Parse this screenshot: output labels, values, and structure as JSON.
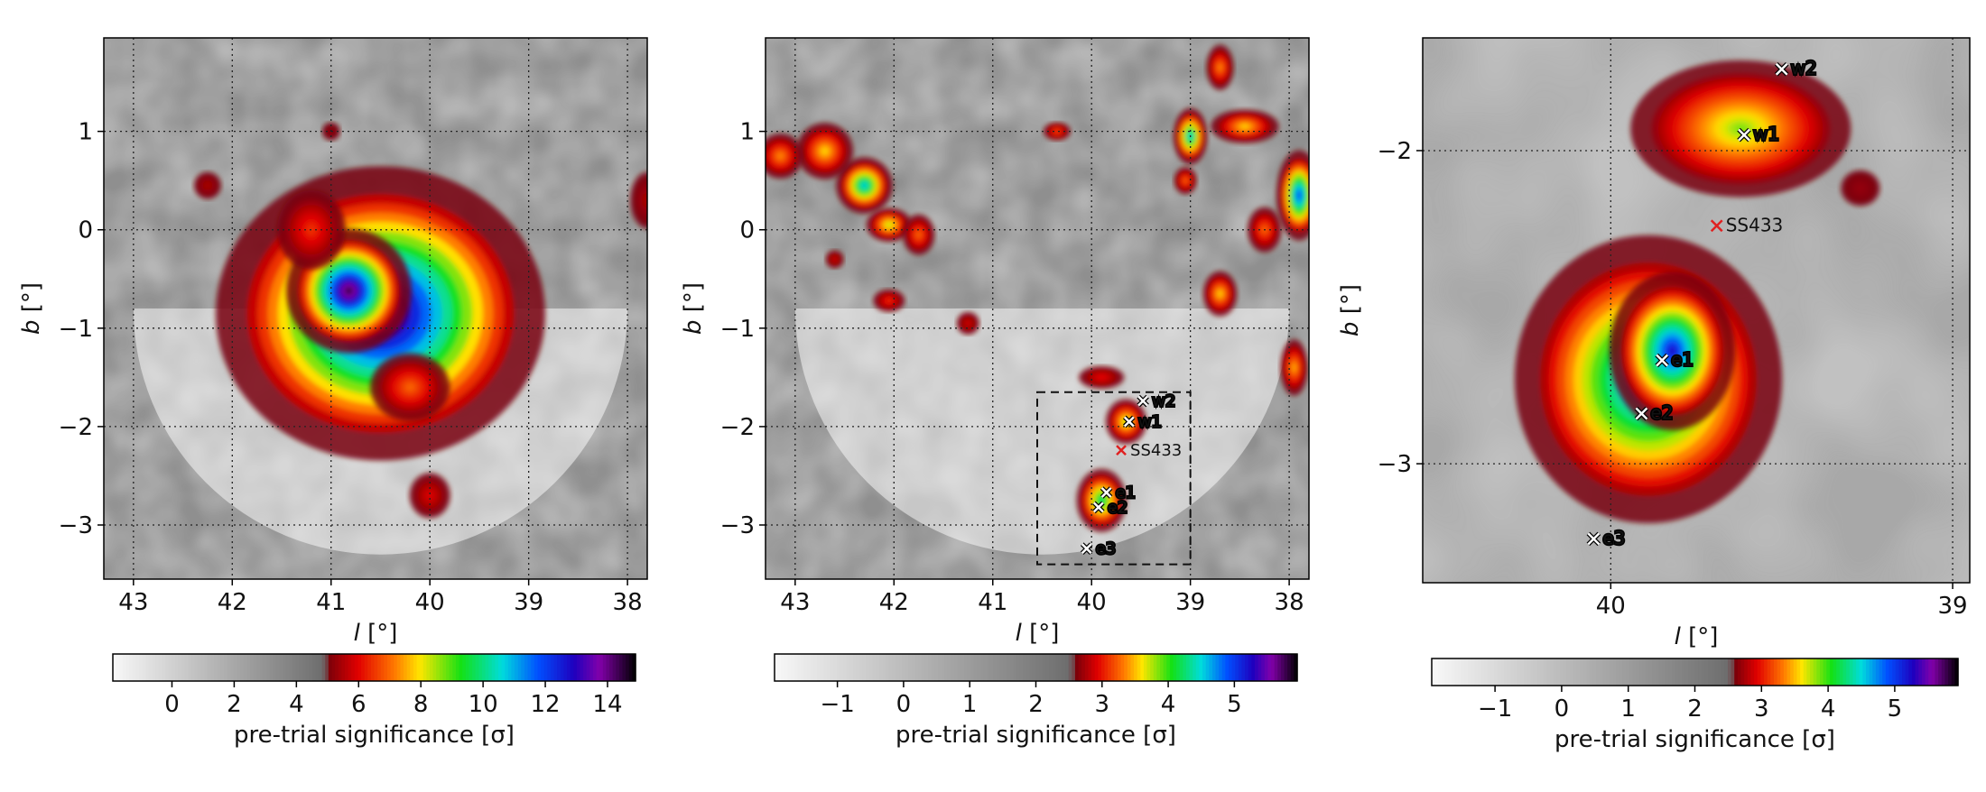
{
  "chart_data": [
    {
      "type": "heatmap",
      "panel": "left",
      "x_axis": {
        "label_var": "l",
        "label_unit": "[°]",
        "range": [
          43.3,
          37.8
        ],
        "reversed": true,
        "ticks": [
          43,
          42,
          41,
          40,
          39,
          38
        ],
        "tick_labels": [
          "43",
          "42",
          "41",
          "40",
          "39",
          "38"
        ]
      },
      "y_axis": {
        "label_var": "b",
        "label_unit": "[°]",
        "range": [
          -3.55,
          1.95
        ],
        "ticks": [
          1,
          0,
          -1,
          -2,
          -3
        ],
        "tick_labels": [
          "1",
          "0",
          "−1",
          "−2",
          "−3"
        ]
      },
      "grid": true,
      "masked_region": {
        "center_l": 40.5,
        "center_b": -0.8,
        "radius_deg": 2.5,
        "hemisphere": "lower"
      },
      "blobs": [
        {
          "l": 40.5,
          "b": -0.85,
          "rl": 1.45,
          "rb": 1.3,
          "peak_sigma": 14.5
        },
        {
          "l": 40.82,
          "b": -0.62,
          "rl": 0.55,
          "rb": 0.55,
          "peak_sigma": 14.5
        },
        {
          "l": 41.2,
          "b": 0.0,
          "rl": 0.3,
          "rb": 0.35,
          "peak_sigma": 6.5
        },
        {
          "l": 40.2,
          "b": -1.6,
          "rl": 0.35,
          "rb": 0.3,
          "peak_sigma": 7.0
        },
        {
          "l": 42.25,
          "b": 0.45,
          "rl": 0.12,
          "rb": 0.12,
          "peak_sigma": 5.5
        },
        {
          "l": 40.0,
          "b": -2.7,
          "rl": 0.18,
          "rb": 0.2,
          "peak_sigma": 6.0
        },
        {
          "l": 37.8,
          "b": 0.3,
          "rl": 0.15,
          "rb": 0.25,
          "peak_sigma": 5.5
        },
        {
          "l": 41.0,
          "b": 1.0,
          "rl": 0.08,
          "rb": 0.08,
          "peak_sigma": 5.2
        }
      ],
      "colorbar": {
        "ticks": [
          0,
          2,
          4,
          6,
          8,
          10,
          12,
          14
        ],
        "tick_labels": [
          "0",
          "2",
          "4",
          "6",
          "8",
          "10",
          "12",
          "14"
        ],
        "range": [
          -1.9,
          14.9
        ],
        "gray_until": 5.0,
        "label": "pre-trial significance [σ]"
      }
    },
    {
      "type": "heatmap",
      "panel": "middle",
      "x_axis": {
        "label_var": "l",
        "label_unit": "[°]",
        "range": [
          43.3,
          37.8
        ],
        "reversed": true,
        "ticks": [
          43,
          42,
          41,
          40,
          39,
          38
        ],
        "tick_labels": [
          "43",
          "42",
          "41",
          "40",
          "39",
          "38"
        ]
      },
      "y_axis": {
        "label_var": "b",
        "label_unit": "[°]",
        "range": [
          -3.55,
          1.95
        ],
        "ticks": [
          1,
          0,
          -1,
          -2,
          -3
        ],
        "tick_labels": [
          "1",
          "0",
          "−1",
          "−2",
          "−3"
        ]
      },
      "grid": true,
      "masked_region": {
        "center_l": 40.5,
        "center_b": -0.8,
        "radius_deg": 2.5,
        "hemisphere": "lower"
      },
      "blobs": [
        {
          "l": 39.65,
          "b": -1.95,
          "rl": 0.18,
          "rb": 0.2,
          "peak_sigma": 3.8
        },
        {
          "l": 39.9,
          "b": -2.75,
          "rl": 0.22,
          "rb": 0.28,
          "peak_sigma": 4.3
        },
        {
          "l": 42.3,
          "b": 0.45,
          "rl": 0.25,
          "rb": 0.25,
          "peak_sigma": 4.6
        },
        {
          "l": 42.7,
          "b": 0.8,
          "rl": 0.25,
          "rb": 0.25,
          "peak_sigma": 3.6
        },
        {
          "l": 43.15,
          "b": 0.75,
          "rl": 0.2,
          "rb": 0.2,
          "peak_sigma": 3.4
        },
        {
          "l": 42.05,
          "b": 0.05,
          "rl": 0.2,
          "rb": 0.15,
          "peak_sigma": 3.8
        },
        {
          "l": 41.75,
          "b": -0.05,
          "rl": 0.14,
          "rb": 0.18,
          "peak_sigma": 3.3
        },
        {
          "l": 42.05,
          "b": -0.72,
          "rl": 0.14,
          "rb": 0.1,
          "peak_sigma": 3.1
        },
        {
          "l": 39.9,
          "b": -1.5,
          "rl": 0.2,
          "rb": 0.1,
          "peak_sigma": 3.0
        },
        {
          "l": 39.0,
          "b": 0.95,
          "rl": 0.15,
          "rb": 0.25,
          "peak_sigma": 4.6
        },
        {
          "l": 39.05,
          "b": 0.5,
          "rl": 0.1,
          "rb": 0.12,
          "peak_sigma": 3.3
        },
        {
          "l": 38.7,
          "b": 1.65,
          "rl": 0.12,
          "rb": 0.2,
          "peak_sigma": 3.4
        },
        {
          "l": 37.9,
          "b": 0.35,
          "rl": 0.2,
          "rb": 0.4,
          "peak_sigma": 5.0
        },
        {
          "l": 38.45,
          "b": 1.05,
          "rl": 0.3,
          "rb": 0.15,
          "peak_sigma": 3.6
        },
        {
          "l": 38.25,
          "b": 0.0,
          "rl": 0.15,
          "rb": 0.2,
          "peak_sigma": 3.3
        },
        {
          "l": 38.7,
          "b": -0.65,
          "rl": 0.15,
          "rb": 0.2,
          "peak_sigma": 3.6
        },
        {
          "l": 37.95,
          "b": -1.4,
          "rl": 0.12,
          "rb": 0.25,
          "peak_sigma": 3.5
        },
        {
          "l": 40.35,
          "b": 1.0,
          "rl": 0.12,
          "rb": 0.08,
          "peak_sigma": 3.2
        },
        {
          "l": 41.25,
          "b": -0.95,
          "rl": 0.1,
          "rb": 0.1,
          "peak_sigma": 2.9
        },
        {
          "l": 42.6,
          "b": -0.3,
          "rl": 0.08,
          "rb": 0.08,
          "peak_sigma": 2.9
        }
      ],
      "box": {
        "l_min": 39.0,
        "l_max": 40.55,
        "b_min": -3.4,
        "b_max": -1.65
      },
      "markers": [
        {
          "label": "w2",
          "l": 39.48,
          "b": -1.74,
          "color": "#ffffff",
          "symbol": "x"
        },
        {
          "label": "w1",
          "l": 39.62,
          "b": -1.95,
          "color": "#ffffff",
          "symbol": "x"
        },
        {
          "label": "SS433",
          "l": 39.7,
          "b": -2.24,
          "color": "#e02020",
          "symbol": "x"
        },
        {
          "label": "e1",
          "l": 39.85,
          "b": -2.67,
          "color": "#ffffff",
          "symbol": "x"
        },
        {
          "label": "e2",
          "l": 39.93,
          "b": -2.82,
          "color": "#ffffff",
          "symbol": "x"
        },
        {
          "label": "e3",
          "l": 40.05,
          "b": -3.24,
          "color": "#ffffff",
          "symbol": "x"
        }
      ],
      "colorbar": {
        "ticks": [
          -1,
          0,
          1,
          2,
          3,
          4,
          5
        ],
        "tick_labels": [
          "−1",
          "0",
          "1",
          "2",
          "3",
          "4",
          "5"
        ],
        "range": [
          -1.95,
          5.95
        ],
        "gray_until": 2.6,
        "label": "pre-trial significance [σ]"
      }
    },
    {
      "type": "heatmap",
      "panel": "right",
      "x_axis": {
        "label_var": "l",
        "label_unit": "[°]",
        "range": [
          40.55,
          38.95
        ],
        "reversed": true,
        "ticks": [
          40,
          39
        ],
        "tick_labels": [
          "40",
          "39"
        ]
      },
      "y_axis": {
        "label_var": "b",
        "label_unit": "[°]",
        "range": [
          -3.38,
          -1.64
        ],
        "ticks": [
          -2,
          -3
        ],
        "tick_labels": [
          "−2",
          "−3"
        ]
      },
      "grid": true,
      "blobs": [
        {
          "l": 39.62,
          "b": -1.93,
          "rl": 0.28,
          "rb": 0.19,
          "peak_sigma": 3.85
        },
        {
          "l": 39.89,
          "b": -2.73,
          "rl": 0.34,
          "rb": 0.4,
          "peak_sigma": 5.05
        },
        {
          "l": 39.82,
          "b": -2.64,
          "rl": 0.16,
          "rb": 0.22,
          "peak_sigma": 5.2
        },
        {
          "l": 39.27,
          "b": -2.12,
          "rl": 0.05,
          "rb": 0.05,
          "peak_sigma": 2.7
        }
      ],
      "markers": [
        {
          "label": "w2",
          "l": 39.5,
          "b": -1.74,
          "color": "#ffffff",
          "symbol": "x"
        },
        {
          "label": "w1",
          "l": 39.61,
          "b": -1.95,
          "color": "#ffffff",
          "symbol": "x"
        },
        {
          "label": "SS433",
          "l": 39.69,
          "b": -2.24,
          "color": "#e02020",
          "symbol": "x"
        },
        {
          "label": "e1",
          "l": 39.85,
          "b": -2.67,
          "color": "#ffffff",
          "symbol": "x"
        },
        {
          "label": "e2",
          "l": 39.91,
          "b": -2.84,
          "color": "#ffffff",
          "symbol": "x"
        },
        {
          "label": "e3",
          "l": 40.05,
          "b": -3.24,
          "color": "#ffffff",
          "symbol": "x"
        }
      ],
      "colorbar": {
        "ticks": [
          -1,
          0,
          1,
          2,
          3,
          4,
          5
        ],
        "tick_labels": [
          "−1",
          "0",
          "1",
          "2",
          "3",
          "4",
          "5"
        ],
        "range": [
          -1.95,
          5.95
        ],
        "gray_until": 2.6,
        "label": "pre-trial significance [σ]"
      }
    }
  ]
}
